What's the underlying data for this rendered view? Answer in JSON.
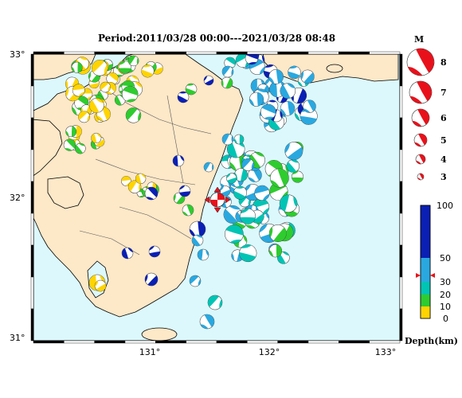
{
  "title": "Period:2011/03/28 00:00---2021/03/28 08:48",
  "lat_labels": [
    "33°",
    "32°",
    "31°"
  ],
  "lon_labels": [
    "131°",
    "132°",
    "133°"
  ],
  "magnitude_legend": {
    "title": "M",
    "values": [
      "8",
      "7",
      "6",
      "5",
      "4",
      "3"
    ]
  },
  "depth_legend": {
    "label": "Depth(km)",
    "ticks": [
      "100",
      "50",
      "30",
      "20",
      "10",
      "0"
    ],
    "colors": {
      "0-10": "#ffd400",
      "10-20": "#2ecc2e",
      "20-30": "#00c4b4",
      "30-50": "#29a8e0",
      "50-100": "#0a1fb4"
    },
    "marker_depth_km": 38
  },
  "colors": {
    "sea": "#dcf8fc",
    "land": "#fde8c8",
    "coast": "#000000",
    "event": "#e8111b"
  },
  "latest_event": {
    "lon": 131.6,
    "lat": 31.98,
    "marker": "red star with triangles"
  }
}
